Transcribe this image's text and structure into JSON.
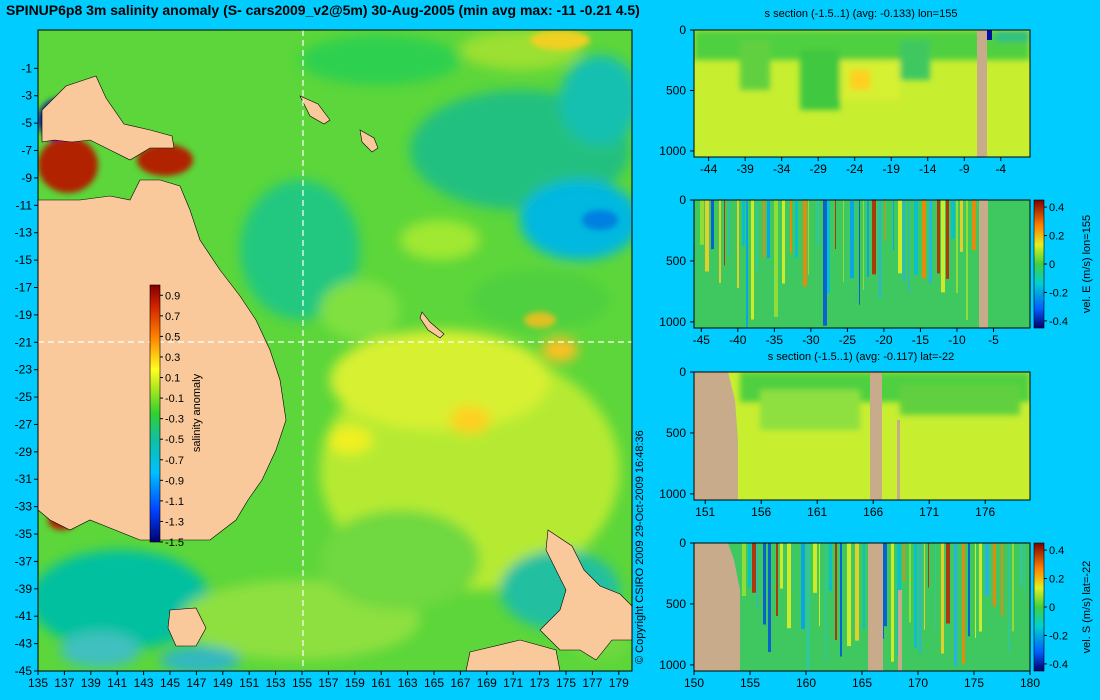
{
  "title": "SPINUP6p8 3m salinity anomaly (S- cars2009_v2@5m) 30-Aug-2005 (min avg max: -11 -0.21 4.5)",
  "copyright": "© Copyright CSIRO 2009  29-Oct-2009 16:48:36",
  "colors": {
    "background": "#00ccff",
    "land": "#f9c99b",
    "section_land": "#c8ab8a"
  },
  "chart_data": [
    {
      "type": "heatmap",
      "name": "map",
      "x_ticks": [
        "135",
        "137",
        "139",
        "141",
        "143",
        "145",
        "147",
        "149",
        "151",
        "153",
        "155",
        "157",
        "159",
        "161",
        "163",
        "165",
        "167",
        "169",
        "171",
        "173",
        "175",
        "177",
        "179"
      ],
      "y_ticks": [
        "-1",
        "-3",
        "-5",
        "-7",
        "-9",
        "-11",
        "-13",
        "-15",
        "-17",
        "-19",
        "-21",
        "-23",
        "-25",
        "-27",
        "-29",
        "-31",
        "-33",
        "-35",
        "-37",
        "-39",
        "-41",
        "-43",
        "-45"
      ],
      "xlim": [
        135,
        180
      ],
      "ylim": [
        -45,
        1.8
      ],
      "colorbar": {
        "label": "salinity anomaly",
        "ticks": [
          "0.9",
          "0.7",
          "0.5",
          "0.3",
          "0.1",
          "-0.1",
          "-0.3",
          "-0.5",
          "-0.7",
          "-0.9",
          "-1.1",
          "-1.3",
          "-1.5"
        ],
        "range": [
          -1.5,
          1
        ]
      },
      "section_lines": {
        "lon": 155,
        "lat": -22
      }
    },
    {
      "type": "heatmap",
      "name": "panel1",
      "title": "s section (-1.5..1) (avg: -0.133) lon=155",
      "x_ticks": [
        "-44",
        "-39",
        "-34",
        "-29",
        "-24",
        "-19",
        "-14",
        "-9",
        "-4"
      ],
      "xlim": [
        -46,
        0
      ],
      "y_ticks": [
        "0",
        "500",
        "1000"
      ],
      "ylim": [
        0,
        1050
      ]
    },
    {
      "type": "heatmap",
      "name": "panel2",
      "x_ticks": [
        "-45",
        "-40",
        "-35",
        "-30",
        "-25",
        "-20",
        "-15",
        "-10",
        "-5"
      ],
      "xlim": [
        -46,
        0
      ],
      "y_ticks": [
        "0",
        "500",
        "1000"
      ],
      "ylim": [
        0,
        1050
      ],
      "colorbar": {
        "label": "vel. E (m/s) lon=155",
        "ticks": [
          "0.4",
          "0.2",
          "0",
          "-0.2",
          "-0.4"
        ],
        "range": [
          -0.45,
          0.45
        ]
      }
    },
    {
      "type": "heatmap",
      "name": "panel3",
      "title": "s section (-1.5..1) (avg: -0.117) lat=-22",
      "x_ticks": [
        "151",
        "156",
        "161",
        "166",
        "171",
        "176"
      ],
      "xlim": [
        150,
        180
      ],
      "y_ticks": [
        "0",
        "500",
        "1000"
      ],
      "ylim": [
        0,
        1050
      ]
    },
    {
      "type": "heatmap",
      "name": "panel4",
      "x_ticks": [
        "150",
        "155",
        "160",
        "165",
        "170",
        "175",
        "180"
      ],
      "xlim": [
        150,
        180
      ],
      "y_ticks": [
        "0",
        "500",
        "1000"
      ],
      "ylim": [
        0,
        1050
      ],
      "colorbar": {
        "label": "vel. S (m/s) lat=-22",
        "ticks": [
          "0.4",
          "0.2",
          "0",
          "-0.2",
          "-0.4"
        ],
        "range": [
          -0.45,
          0.45
        ]
      }
    }
  ]
}
